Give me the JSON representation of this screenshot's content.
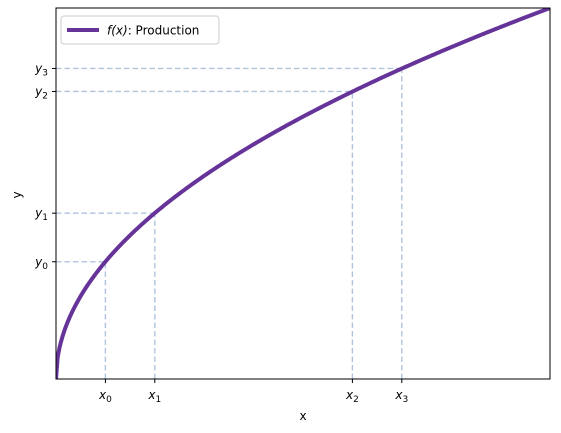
{
  "chart_data": {
    "type": "line",
    "title": "",
    "xlabel": "x",
    "ylabel": "y",
    "xlim": [
      0,
      1
    ],
    "ylim": [
      0,
      1
    ],
    "grid": false,
    "legend_position": "top-left",
    "series": [
      {
        "name": "Production",
        "legend_math": "f(x)",
        "legend_label": ": Production",
        "function": "sqrt(x)",
        "x": [
          0,
          0.01,
          0.02,
          0.04,
          0.06,
          0.08,
          0.1,
          0.125,
          0.15,
          0.2,
          0.25,
          0.3,
          0.35,
          0.4,
          0.45,
          0.5,
          0.55,
          0.6,
          0.65,
          0.7,
          0.75,
          0.8,
          0.85,
          0.9,
          0.95,
          1.0
        ],
        "y": [
          0,
          0.1,
          0.141,
          0.2,
          0.245,
          0.283,
          0.316,
          0.354,
          0.387,
          0.447,
          0.5,
          0.548,
          0.592,
          0.632,
          0.671,
          0.707,
          0.742,
          0.775,
          0.806,
          0.837,
          0.866,
          0.894,
          0.922,
          0.949,
          0.975,
          1.0
        ],
        "color": "#663399",
        "line_width": 4
      }
    ],
    "marked_points": [
      {
        "x_label": "x",
        "x_sub": "0",
        "y_label": "y",
        "y_sub": "0",
        "x": 0.1,
        "y": 0.316
      },
      {
        "x_label": "x",
        "x_sub": "1",
        "y_label": "y",
        "y_sub": "1",
        "x": 0.2,
        "y": 0.447
      },
      {
        "x_label": "x",
        "x_sub": "2",
        "y_label": "y",
        "y_sub": "2",
        "x": 0.6,
        "y": 0.775
      },
      {
        "x_label": "x",
        "x_sub": "3",
        "y_label": "y",
        "y_sub": "3",
        "x": 0.7,
        "y": 0.837
      }
    ],
    "guide_color": "#b0c4de"
  }
}
